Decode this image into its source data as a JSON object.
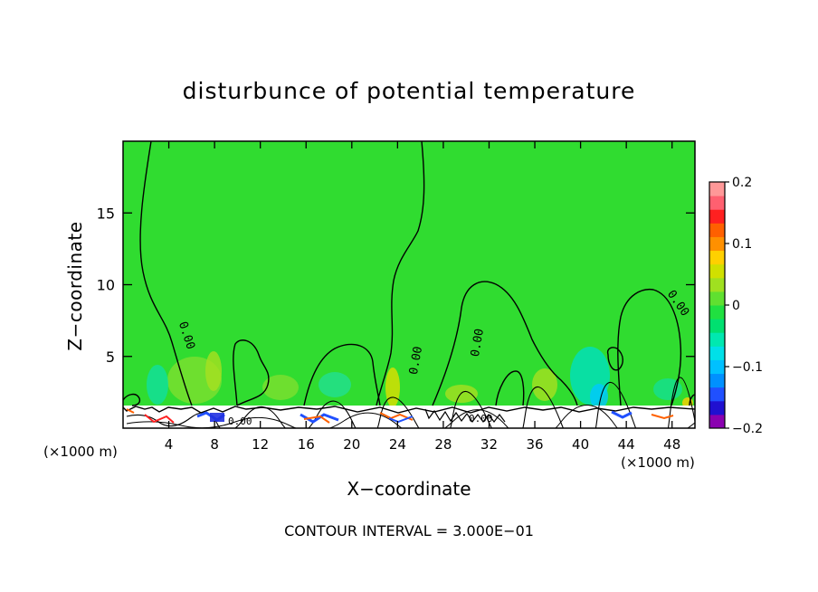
{
  "chart_data": {
    "type": "heatmap",
    "title": "disturbunce of potential temperature",
    "xlabel": "X−coordinate",
    "ylabel": "Z−coordinate",
    "x_unit_label": "(×1000 m)",
    "y_unit_label": "(×1000 m)",
    "xlim": [
      0,
      50
    ],
    "ylim": [
      0,
      20
    ],
    "x_ticks": [
      4,
      8,
      12,
      16,
      20,
      24,
      28,
      32,
      36,
      40,
      44,
      48
    ],
    "y_ticks": [
      5,
      10,
      15
    ],
    "colorbar": {
      "range": [
        -0.2,
        0.2
      ],
      "tick_values": [
        0.2,
        0.1,
        0,
        -0.1,
        -0.2
      ],
      "tick_labels": [
        "0.2",
        "0.1",
        "0",
        "−0.1",
        "−0.2"
      ],
      "colors": [
        "#8a00b0",
        "#2010d0",
        "#2050ff",
        "#0090ff",
        "#00c0ff",
        "#00e0e8",
        "#00e8b0",
        "#00e070",
        "#20e040",
        "#60e030",
        "#a0e020",
        "#d0e000",
        "#ffd000",
        "#ff9000",
        "#ff6000",
        "#ff2020",
        "#ff6070",
        "#ff9898"
      ]
    },
    "contour_labels": [
      "0.00",
      "0.00",
      "0.00",
      "0.00",
      "0.00",
      "0.00"
    ],
    "contour_interval_text": "CONTOUR INTERVAL = 3.000E−01"
  }
}
